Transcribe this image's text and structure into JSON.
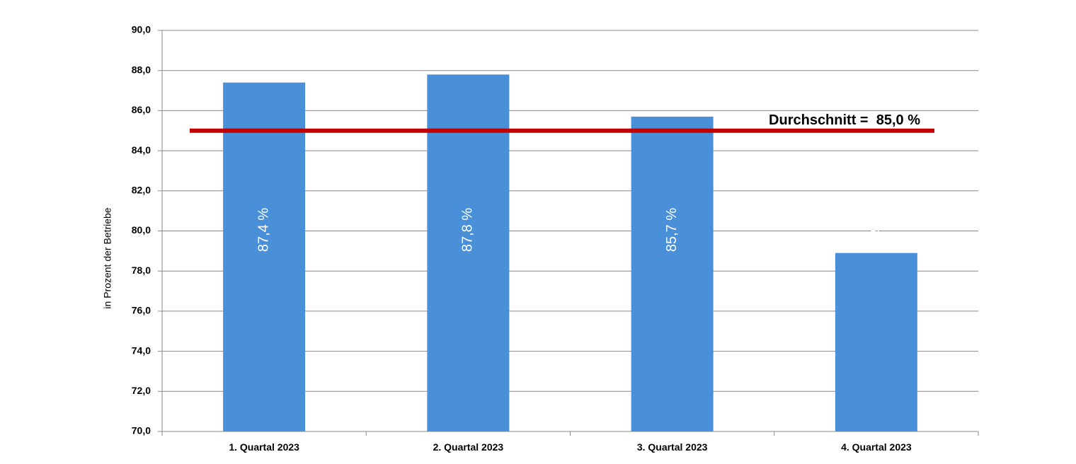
{
  "chart_data": {
    "type": "bar",
    "categories": [
      "1. Quartal 2023",
      "2. Quartal 2023",
      "3. Quartal 2023",
      "4. Quartal 2023"
    ],
    "values": [
      87.4,
      87.8,
      85.7,
      78.9
    ],
    "data_labels": [
      "87,4 %",
      "87,8 %",
      "85,7 %",
      "78,9 %"
    ],
    "ylabel": "in Prozent der Betriebe",
    "ylim": [
      70,
      90
    ],
    "yticks": [
      70,
      72,
      74,
      76,
      78,
      80,
      82,
      84,
      86,
      88,
      90
    ],
    "ytick_labels": [
      "70,0",
      "72,0",
      "74,0",
      "76,0",
      "78,0",
      "80,0",
      "82,0",
      "84,0",
      "86,0",
      "88,0",
      "90,0"
    ],
    "grid": true,
    "reference_line": {
      "value": 85.0,
      "label": "Durchschnitt =  85,0 %",
      "color": "#c00000"
    },
    "bar_color": "#4a90d9"
  }
}
